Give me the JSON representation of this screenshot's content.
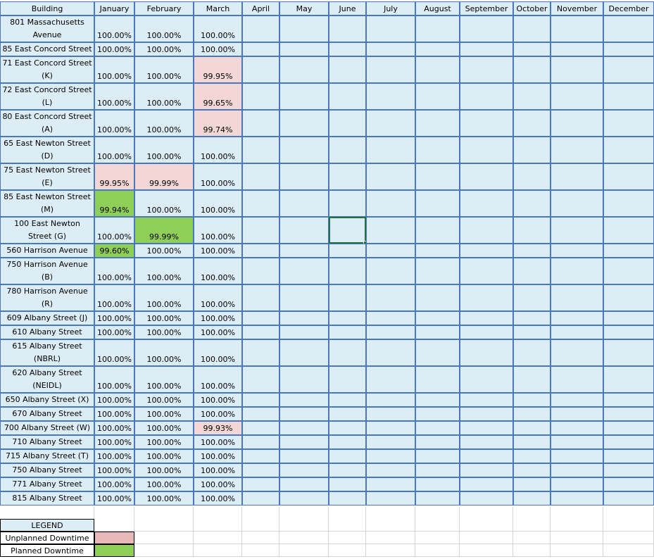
{
  "columns": [
    "Building",
    "January",
    "February",
    "March",
    "April",
    "May",
    "June",
    "July",
    "August",
    "September",
    "October",
    "November",
    "December"
  ],
  "rows": [
    {
      "name": "801 Massachusetts Avenue",
      "values": [
        "100.00%",
        "100.00%",
        "100.00%"
      ],
      "status": [
        "",
        "",
        ""
      ]
    },
    {
      "name": "85 East Concord Street",
      "values": [
        "100.00%",
        "100.00%",
        "100.00%"
      ],
      "status": [
        "",
        "",
        ""
      ]
    },
    {
      "name": "71 East Concord Street (K)",
      "values": [
        "100.00%",
        "100.00%",
        "99.95%"
      ],
      "status": [
        "",
        "",
        "unplanned"
      ]
    },
    {
      "name": "72 East Concord Street (L)",
      "values": [
        "100.00%",
        "100.00%",
        "99.65%"
      ],
      "status": [
        "",
        "",
        "unplanned"
      ]
    },
    {
      "name": "80 East Concord Street (A)",
      "values": [
        "100.00%",
        "100.00%",
        "99.74%"
      ],
      "status": [
        "",
        "",
        "unplanned"
      ]
    },
    {
      "name": "65 East Newton Street (D)",
      "values": [
        "100.00%",
        "100.00%",
        "100.00%"
      ],
      "status": [
        "",
        "",
        ""
      ]
    },
    {
      "name": "75 East Newton Street (E)",
      "values": [
        "99.95%",
        "99.99%",
        "100.00%"
      ],
      "status": [
        "unplanned",
        "unplanned",
        ""
      ]
    },
    {
      "name": "85 East Newton Street (M)",
      "values": [
        "99.94%",
        "100.00%",
        "100.00%"
      ],
      "status": [
        "planned",
        "",
        ""
      ]
    },
    {
      "name": "100 East Newton Street (G)",
      "values": [
        "100.00%",
        "99.99%",
        "100.00%"
      ],
      "status": [
        "",
        "planned",
        ""
      ]
    },
    {
      "name": "560 Harrison Avenue",
      "values": [
        "99.60%",
        "100.00%",
        "100.00%"
      ],
      "status": [
        "planned",
        "",
        ""
      ]
    },
    {
      "name": "750 Harrison Avenue (B)",
      "values": [
        "100.00%",
        "100.00%",
        "100.00%"
      ],
      "status": [
        "",
        "",
        ""
      ]
    },
    {
      "name": "780 Harrison Avenue (R)",
      "values": [
        "100.00%",
        "100.00%",
        "100.00%"
      ],
      "status": [
        "",
        "",
        ""
      ]
    },
    {
      "name": "609 Albany Street (J)",
      "values": [
        "100.00%",
        "100.00%",
        "100.00%"
      ],
      "status": [
        "",
        "",
        ""
      ]
    },
    {
      "name": "610 Albany Street",
      "values": [
        "100.00%",
        "100.00%",
        "100.00%"
      ],
      "status": [
        "",
        "",
        ""
      ]
    },
    {
      "name": "615 Albany Street (NBRL)",
      "values": [
        "100.00%",
        "100.00%",
        "100.00%"
      ],
      "status": [
        "",
        "",
        ""
      ]
    },
    {
      "name": "620 Albany Street (NEIDL)",
      "values": [
        "100.00%",
        "100.00%",
        "100.00%"
      ],
      "status": [
        "",
        "",
        ""
      ]
    },
    {
      "name": "650 Albany Street (X)",
      "values": [
        "100.00%",
        "100.00%",
        "100.00%"
      ],
      "status": [
        "",
        "",
        ""
      ]
    },
    {
      "name": "670 Albany Street",
      "values": [
        "100.00%",
        "100.00%",
        "100.00%"
      ],
      "status": [
        "",
        "",
        ""
      ]
    },
    {
      "name": "700 Albany Street (W)",
      "values": [
        "100.00%",
        "100.00%",
        "99.93%"
      ],
      "status": [
        "",
        "",
        "unplanned"
      ]
    },
    {
      "name": "710 Albany Street",
      "values": [
        "100.00%",
        "100.00%",
        "100.00%"
      ],
      "status": [
        "",
        "",
        ""
      ]
    },
    {
      "name": "715 Albany Street (T)",
      "values": [
        "100.00%",
        "100.00%",
        "100.00%"
      ],
      "status": [
        "",
        "",
        ""
      ]
    },
    {
      "name": "750 Albany Street",
      "values": [
        "100.00%",
        "100.00%",
        "100.00%"
      ],
      "status": [
        "",
        "",
        ""
      ]
    },
    {
      "name": "771 Albany Street",
      "values": [
        "100.00%",
        "100.00%",
        "100.00%"
      ],
      "status": [
        "",
        "",
        ""
      ]
    },
    {
      "name": "815 Albany Street",
      "values": [
        "100.00%",
        "100.00%",
        "100.00%"
      ],
      "status": [
        "",
        "",
        ""
      ]
    }
  ],
  "legend": {
    "title": "LEGEND",
    "items": [
      {
        "label": "Unplanned Downtime",
        "color": "#e6b8b7"
      },
      {
        "label": "Planned Downtime",
        "color": "#8fce57"
      }
    ]
  },
  "colors": {
    "cell_fill": "#dcedf5",
    "cell_border": "#4a78c0",
    "unplanned": "#f3d7d7",
    "planned": "#8fce57",
    "selection": "#217346"
  }
}
